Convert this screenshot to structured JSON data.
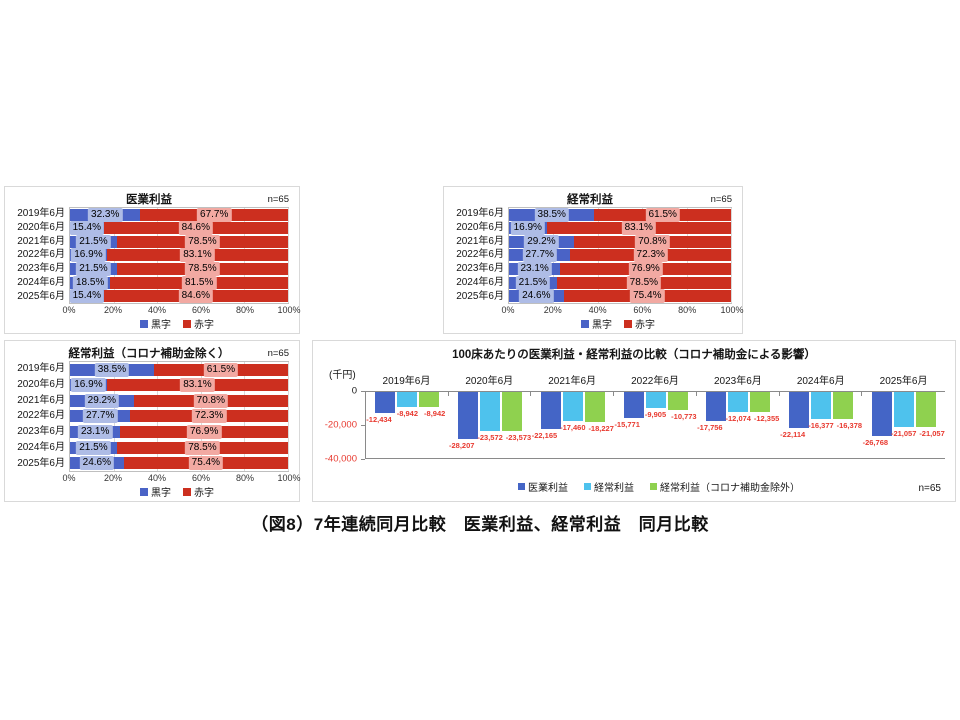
{
  "caption": "（図8）7年連続同月比較　医業利益、経常利益　同月比較",
  "colors": {
    "surplus_bar": "#4a63c6",
    "deficit_bar": "#cc2f1f",
    "surplus_chip": "#aebce6",
    "deficit_chip": "#f2a9a2",
    "igyou_bar": "#4465c6",
    "keijou_bar": "#4ec2ed",
    "keijou_ex_bar": "#8fd14f",
    "negative_label": "#e8392f",
    "panel_border": "#d9d9d9"
  },
  "chart_data": [
    {
      "type": "bar",
      "orientation": "horizontal-stacked",
      "title": "医業利益",
      "n_label": "n=65",
      "categories": [
        "2019年6月",
        "2020年6月",
        "2021年6月",
        "2022年6月",
        "2023年6月",
        "2024年6月",
        "2025年6月"
      ],
      "series": [
        {
          "name": "黒字",
          "color": "#4a63c6",
          "chip": "#aebce6",
          "values": [
            32.3,
            15.4,
            21.5,
            16.9,
            21.5,
            18.5,
            15.4
          ]
        },
        {
          "name": "赤字",
          "color": "#cc2f1f",
          "chip": "#f2a9a2",
          "values": [
            67.7,
            84.6,
            78.5,
            83.1,
            78.5,
            81.5,
            84.6
          ]
        }
      ],
      "x_ticks": [
        "0%",
        "20%",
        "40%",
        "60%",
        "80%",
        "100%"
      ],
      "xlim": [
        0,
        100
      ],
      "legend_position": "bottom"
    },
    {
      "type": "bar",
      "orientation": "horizontal-stacked",
      "title": "経常利益",
      "n_label": "n=65",
      "categories": [
        "2019年6月",
        "2020年6月",
        "2021年6月",
        "2022年6月",
        "2023年6月",
        "2024年6月",
        "2025年6月"
      ],
      "series": [
        {
          "name": "黒字",
          "color": "#4a63c6",
          "chip": "#aebce6",
          "values": [
            38.5,
            16.9,
            29.2,
            27.7,
            23.1,
            21.5,
            24.6
          ]
        },
        {
          "name": "赤字",
          "color": "#cc2f1f",
          "chip": "#f2a9a2",
          "values": [
            61.5,
            83.1,
            70.8,
            72.3,
            76.9,
            78.5,
            75.4
          ]
        }
      ],
      "x_ticks": [
        "0%",
        "20%",
        "40%",
        "60%",
        "80%",
        "100%"
      ],
      "xlim": [
        0,
        100
      ],
      "legend_position": "bottom"
    },
    {
      "type": "bar",
      "orientation": "horizontal-stacked",
      "title": "経常利益（コロナ補助金除く）",
      "n_label": "n=65",
      "categories": [
        "2019年6月",
        "2020年6月",
        "2021年6月",
        "2022年6月",
        "2023年6月",
        "2024年6月",
        "2025年6月"
      ],
      "series": [
        {
          "name": "黒字",
          "color": "#4a63c6",
          "chip": "#aebce6",
          "values": [
            38.5,
            16.9,
            29.2,
            27.7,
            23.1,
            21.5,
            24.6
          ]
        },
        {
          "name": "赤字",
          "color": "#cc2f1f",
          "chip": "#f2a9a2",
          "values": [
            61.5,
            83.1,
            70.8,
            72.3,
            76.9,
            78.5,
            75.4
          ]
        }
      ],
      "x_ticks": [
        "0%",
        "20%",
        "40%",
        "60%",
        "80%",
        "100%"
      ],
      "xlim": [
        0,
        100
      ],
      "legend_position": "bottom"
    },
    {
      "type": "bar",
      "orientation": "vertical-grouped",
      "title": "100床あたりの医業利益・経常利益の比較（コロナ補助金による影響）",
      "unit_label": "(千円)",
      "n_label": "n=65",
      "categories": [
        "2019年6月",
        "2020年6月",
        "2021年6月",
        "2022年6月",
        "2023年6月",
        "2024年6月",
        "2025年6月"
      ],
      "series": [
        {
          "name": "医業利益",
          "color": "#4465c6",
          "values": [
            -12434,
            -28207,
            -22165,
            -15771,
            -17756,
            -22114,
            -26768
          ]
        },
        {
          "name": "経常利益",
          "color": "#4ec2ed",
          "values": [
            -8942,
            -23572,
            -17460,
            -9905,
            -12074,
            -16377,
            -21057
          ]
        },
        {
          "name": "経常利益（コロナ補助金除外）",
          "color": "#8fd14f",
          "values": [
            -8942,
            -23573,
            -18227,
            -10773,
            -12355,
            -16378,
            -21057
          ]
        }
      ],
      "y_ticks": [
        {
          "label": "0",
          "value": 0
        },
        {
          "label": "-20,000",
          "value": -20000
        },
        {
          "label": "-40,000",
          "value": -40000
        }
      ],
      "ylim": [
        -40000,
        0
      ],
      "legend_position": "bottom"
    }
  ]
}
